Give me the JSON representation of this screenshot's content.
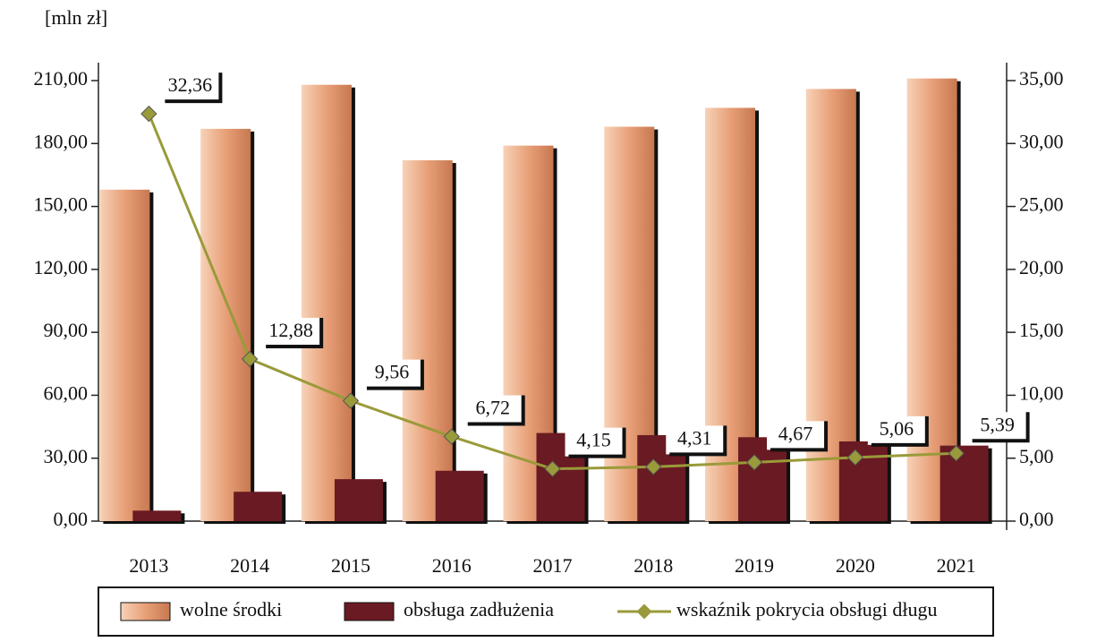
{
  "chart_data": {
    "type": "bar",
    "y_label": "[mln zł]",
    "categories": [
      "2013",
      "2014",
      "2015",
      "2016",
      "2017",
      "2018",
      "2019",
      "2020",
      "2021"
    ],
    "series": [
      {
        "name": "wolne środki",
        "color": "#e8a078",
        "values": [
          158,
          187,
          208,
          172,
          179,
          188,
          197,
          206,
          211
        ]
      },
      {
        "name": "obsługa zadłużenia",
        "color": "#6a1a22",
        "values": [
          5,
          14,
          20,
          24,
          42,
          41,
          40,
          38,
          36
        ]
      },
      {
        "name": "wskaźnik pokrycia obsługi długu",
        "color": "#9a9a3a",
        "type": "line",
        "axis": "y2",
        "values": [
          32.36,
          12.88,
          9.56,
          6.72,
          4.15,
          4.31,
          4.67,
          5.06,
          5.39
        ],
        "value_labels": [
          "32,36",
          "12,88",
          "9,56",
          "6,72",
          "4,15",
          "4,31",
          "4,67",
          "5,06",
          "5,39"
        ]
      }
    ],
    "ylim": [
      0,
      210
    ],
    "yticks": [
      {
        "value": 0,
        "label": "0,00"
      },
      {
        "value": 30,
        "label": "30,00"
      },
      {
        "value": 60,
        "label": "60,00"
      },
      {
        "value": 90,
        "label": "90,00"
      },
      {
        "value": 120,
        "label": "120,00"
      },
      {
        "value": 150,
        "label": "150,00"
      },
      {
        "value": 180,
        "label": "180,00"
      },
      {
        "value": 210,
        "label": "210,00"
      }
    ],
    "y2lim": [
      0,
      35
    ],
    "y2ticks": [
      {
        "value": 0,
        "label": "0,00"
      },
      {
        "value": 5,
        "label": "5,00"
      },
      {
        "value": 10,
        "label": "10,00"
      },
      {
        "value": 15,
        "label": "15,00"
      },
      {
        "value": 20,
        "label": "20,00"
      },
      {
        "value": 25,
        "label": "25,00"
      },
      {
        "value": 30,
        "label": "30,00"
      },
      {
        "value": 35,
        "label": "35,00"
      }
    ],
    "legend": "bottom"
  }
}
